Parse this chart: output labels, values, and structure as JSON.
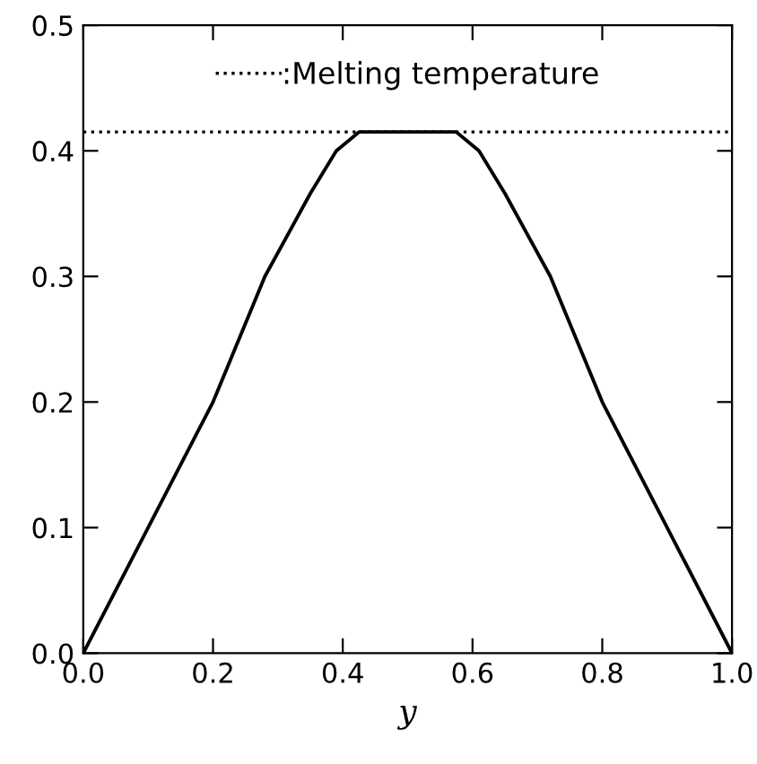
{
  "chart_data": {
    "type": "line",
    "xlabel": "y",
    "x": [
      0.0,
      0.1,
      0.2,
      0.28,
      0.35,
      0.39,
      0.425,
      0.5,
      0.575,
      0.61,
      0.65,
      0.72,
      0.8,
      0.9,
      1.0
    ],
    "series": [
      {
        "color": "#000000",
        "values": [
          0.0,
          0.1,
          0.2,
          0.3,
          0.366,
          0.4,
          0.415,
          0.415,
          0.415,
          0.4,
          0.366,
          0.3,
          0.2,
          0.1,
          0.0
        ]
      }
    ],
    "xlim": [
      0.0,
      1.0
    ],
    "xticks": [
      {
        "value": 0.0,
        "label": "0.0"
      },
      0.2,
      0.4,
      0.6,
      0.8,
      {
        "value": 1.0,
        "label": "1.0"
      }
    ],
    "ylim": [
      0.0,
      0.5
    ],
    "yticks": [
      {
        "value": 0.0,
        "label": "0.0"
      },
      0.1,
      0.2,
      0.3,
      0.4,
      0.5
    ],
    "ref_lines": [
      {
        "axis": "y",
        "value": 0.415,
        "label": ":Melting temperature",
        "color": "#000000",
        "line_style": "dotted"
      }
    ],
    "legend": "top",
    "grid": false,
    "marker": "none",
    "line_style": "solid"
  }
}
